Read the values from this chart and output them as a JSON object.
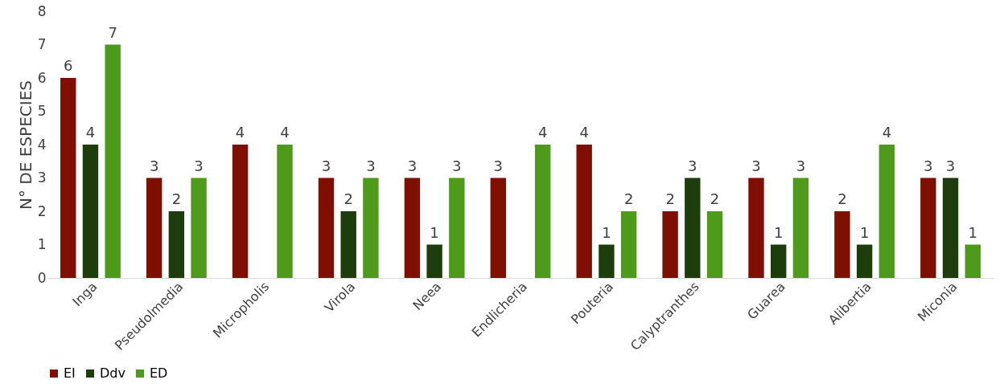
{
  "chart_data": {
    "type": "bar",
    "ylabel": "N° DE ESPECIES",
    "categories": [
      "Inga",
      "Pseudolmedia",
      "Micropholis",
      "Virola",
      "Neea",
      "Endlicheria",
      "Pouteria",
      "Calyptranthes",
      "Guarea",
      "Alibertia",
      "Miconia"
    ],
    "series": [
      {
        "name": "EI",
        "color": "#7f0f00",
        "values": [
          6,
          3,
          4,
          3,
          3,
          3,
          4,
          2,
          3,
          2,
          3
        ]
      },
      {
        "name": "Ddv",
        "color": "#1e3d0c",
        "values": [
          4,
          2,
          null,
          2,
          1,
          null,
          1,
          3,
          1,
          1,
          3
        ]
      },
      {
        "name": "ED",
        "color": "#4e9a1a",
        "values": [
          7,
          3,
          4,
          3,
          3,
          4,
          2,
          2,
          3,
          4,
          1
        ]
      }
    ],
    "ylim": [
      0,
      8
    ],
    "yticks": [
      0,
      1,
      2,
      3,
      4,
      5,
      6,
      7,
      8
    ],
    "grid": false,
    "legend": "bottom",
    "data_labels": true
  }
}
